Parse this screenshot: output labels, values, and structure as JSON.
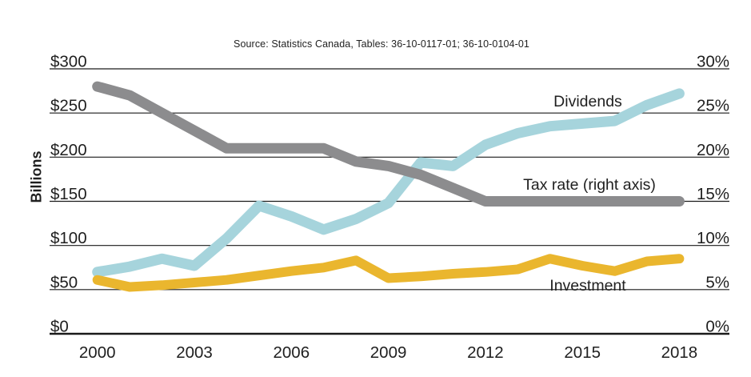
{
  "source_note": "Source: Statistics Canada, Tables: 36-10-0117-01; 36-10-0104-01",
  "chart_data": {
    "type": "line",
    "x": [
      2000,
      2001,
      2002,
      2003,
      2004,
      2005,
      2006,
      2007,
      2008,
      2009,
      2010,
      2011,
      2012,
      2013,
      2014,
      2015,
      2016,
      2017,
      2018
    ],
    "x_ticks": [
      {
        "label": "2000",
        "year": 2000
      },
      {
        "label": "2003",
        "year": 2003
      },
      {
        "label": "2006",
        "year": 2006
      },
      {
        "label": "2009",
        "year": 2009
      },
      {
        "label": "2012",
        "year": 2012
      },
      {
        "label": "2015",
        "year": 2015
      },
      {
        "label": "2018",
        "year": 2018
      }
    ],
    "left_axis": {
      "label": "Billions",
      "range": [
        0,
        300
      ],
      "ticks": [
        {
          "label": "$300",
          "value": 300
        },
        {
          "label": "$250",
          "value": 250
        },
        {
          "label": "$200",
          "value": 200
        },
        {
          "label": "$150",
          "value": 150
        },
        {
          "label": "$100",
          "value": 100
        },
        {
          "label": "$50",
          "value": 50
        },
        {
          "label": "$0",
          "value": 0
        }
      ]
    },
    "right_axis": {
      "range": [
        0,
        30
      ],
      "ticks": [
        {
          "label": "30%",
          "value": 30
        },
        {
          "label": "25%",
          "value": 25
        },
        {
          "label": "20%",
          "value": 20
        },
        {
          "label": "15%",
          "value": 15
        },
        {
          "label": "10%",
          "value": 10
        },
        {
          "label": "5%",
          "value": 5
        },
        {
          "label": "0%",
          "value": 0
        }
      ]
    },
    "grid": true,
    "legend_position": "inline-labels",
    "series": [
      {
        "name": "Dividends",
        "label": "Dividends",
        "axis": "left",
        "color": "#a6d4dc",
        "values": [
          70,
          76,
          85,
          77,
          108,
          145,
          133,
          118,
          130,
          148,
          194,
          190,
          214,
          227,
          235,
          238,
          241,
          259,
          272
        ]
      },
      {
        "name": "Investment",
        "label": "Investment",
        "axis": "left",
        "color": "#eab62e",
        "values": [
          61,
          53,
          55,
          58,
          61,
          66,
          71,
          75,
          83,
          63,
          65,
          68,
          70,
          73,
          85,
          77,
          71,
          82,
          85
        ]
      },
      {
        "name": "Tax rate",
        "label": "Tax rate (right axis)",
        "axis": "right",
        "color": "#8c8c8e",
        "values": [
          28,
          27,
          25,
          23,
          21,
          21,
          21,
          21,
          19.5,
          19,
          18,
          16.5,
          15,
          15,
          15,
          15,
          15,
          15,
          15
        ]
      }
    ]
  }
}
